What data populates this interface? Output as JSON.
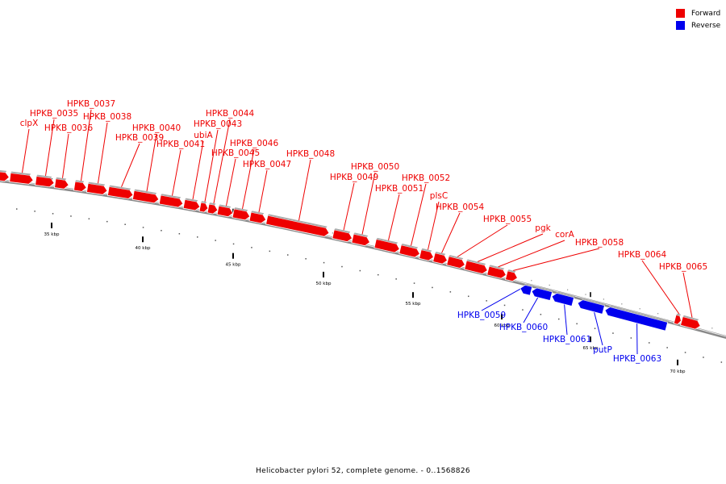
{
  "caption": "Helicobacter pylori 52, complete genome. - 0..1568826",
  "colors": {
    "forward": "#ee0000",
    "reverse": "#0000ee",
    "backbone": "#8a8a8a"
  },
  "legend": [
    {
      "label": "Forward",
      "color": "#ee0000"
    },
    {
      "label": "Reverse",
      "color": "#0000ee"
    }
  ],
  "tick_labels": [
    "35 kbp",
    "40 kbp",
    "45 kbp",
    "50 kbp",
    "55 kbp",
    "60 kbp",
    "65 kbp",
    "70 kbp"
  ],
  "genes": [
    {
      "name": "",
      "strand": "forward"
    },
    {
      "name": "clpX",
      "strand": "forward"
    },
    {
      "name": "HPKB_0035",
      "strand": "forward"
    },
    {
      "name": "HPKB_0036",
      "strand": "forward"
    },
    {
      "name": "HPKB_0037",
      "strand": "forward"
    },
    {
      "name": "HPKB_0038",
      "strand": "forward"
    },
    {
      "name": "HPKB_0039",
      "strand": "forward"
    },
    {
      "name": "HPKB_0040",
      "strand": "forward"
    },
    {
      "name": "HPKB_0041",
      "strand": "forward"
    },
    {
      "name": "ubiA",
      "strand": "forward"
    },
    {
      "name": "HPKB_0043",
      "strand": "forward"
    },
    {
      "name": "HPKB_0044",
      "strand": "forward"
    },
    {
      "name": "HPKB_0045",
      "strand": "forward"
    },
    {
      "name": "HPKB_0046",
      "strand": "forward"
    },
    {
      "name": "HPKB_0047",
      "strand": "forward"
    },
    {
      "name": "HPKB_0048",
      "strand": "forward"
    },
    {
      "name": "HPKB_0049",
      "strand": "forward"
    },
    {
      "name": "HPKB_0050",
      "strand": "forward"
    },
    {
      "name": "HPKB_0051",
      "strand": "forward"
    },
    {
      "name": "HPKB_0052",
      "strand": "forward"
    },
    {
      "name": "plsC",
      "strand": "forward"
    },
    {
      "name": "HPKB_0054",
      "strand": "forward"
    },
    {
      "name": "HPKB_0055",
      "strand": "forward"
    },
    {
      "name": "pgk",
      "strand": "forward"
    },
    {
      "name": "corA",
      "strand": "forward"
    },
    {
      "name": "HPKB_0058",
      "strand": "forward"
    },
    {
      "name": "HPKB_0059",
      "strand": "reverse"
    },
    {
      "name": "HPKB_0060",
      "strand": "reverse"
    },
    {
      "name": "HPKB_0061",
      "strand": "reverse"
    },
    {
      "name": "putP",
      "strand": "reverse"
    },
    {
      "name": "HPKB_0063",
      "strand": "reverse"
    },
    {
      "name": "HPKB_0064",
      "strand": "forward"
    },
    {
      "name": "HPKB_0065",
      "strand": "forward"
    }
  ]
}
